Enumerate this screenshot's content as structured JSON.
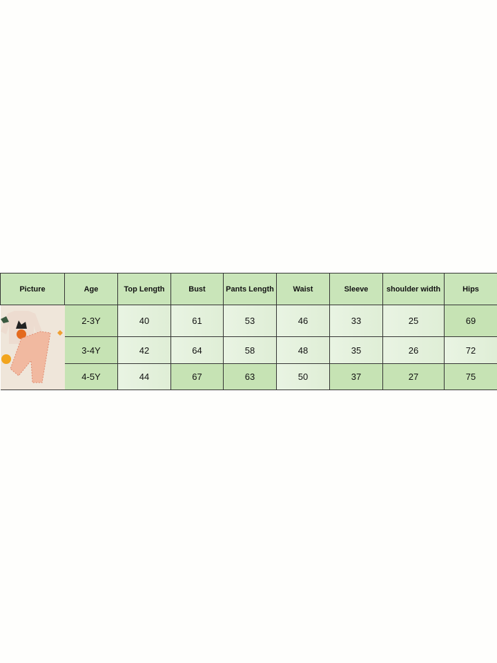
{
  "size_chart": {
    "headers": [
      "Picture",
      "Age",
      "Top Length",
      "Bust",
      "Pants Length",
      "Waist",
      "Sleeve",
      "shoulder width",
      "Hips"
    ],
    "rows": [
      {
        "age": "2-3Y",
        "values": [
          "40",
          "61",
          "53",
          "46",
          "33",
          "25",
          "69"
        ]
      },
      {
        "age": "3-4Y",
        "values": [
          "42",
          "64",
          "58",
          "48",
          "35",
          "26",
          "72"
        ]
      },
      {
        "age": "4-5Y",
        "values": [
          "44",
          "67",
          "63",
          "50",
          "37",
          "27",
          "75"
        ]
      }
    ],
    "picture_icon": "product-photo-halloween-cat-sweatshirt-gingham-pants",
    "colors": {
      "header": "#c9e5b9",
      "cell_dark": "#c6e3b4",
      "cell_light": "#e6f2df",
      "border": "#333333"
    }
  }
}
